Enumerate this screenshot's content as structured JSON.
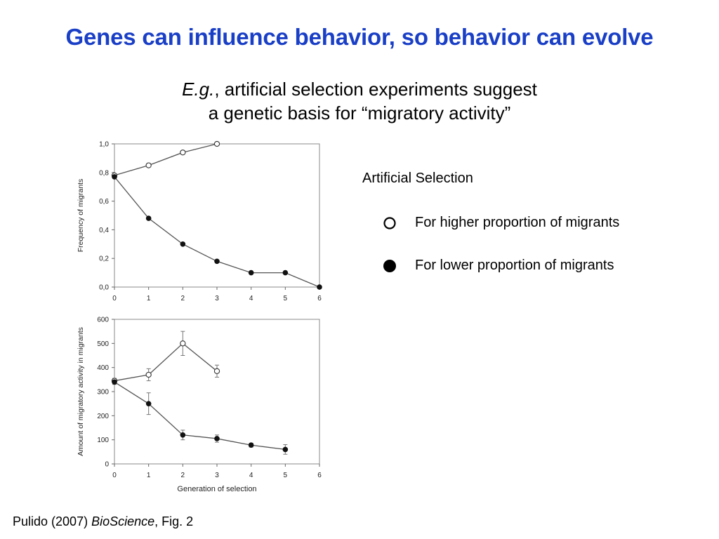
{
  "slide": {
    "title": "Genes can influence behavior, so behavior can evolve",
    "subtitle_italic": "E.g.",
    "subtitle_line1_rest": ", artificial selection experiments suggest",
    "subtitle_line2": "a genetic basis for “migratory activity”",
    "legend_title": "Artificial Selection",
    "legend_high": "For higher proportion of migrants",
    "legend_low": "For lower proportion of migrants",
    "citation_prefix": "Pulido (2007) ",
    "citation_journal": "BioScience",
    "citation_suffix": ", Fig. 2"
  },
  "chart_data": [
    {
      "type": "line",
      "title": "",
      "xlabel": "",
      "ylabel": "Frequency of migrants",
      "xlim": [
        0,
        6
      ],
      "ylim": [
        0,
        1.0
      ],
      "xticks": [
        "0",
        "1",
        "2",
        "3",
        "4",
        "5",
        "6"
      ],
      "yticks": [
        "0,0",
        "0,2",
        "0,4",
        "0,6",
        "0,8",
        "1,0"
      ],
      "yticks_values": [
        0,
        0.2,
        0.4,
        0.6,
        0.8,
        1.0
      ],
      "series": [
        {
          "name": "For higher proportion of migrants",
          "marker": "open",
          "x": [
            0,
            1,
            2,
            3
          ],
          "y": [
            0.78,
            0.85,
            0.94,
            1.0
          ]
        },
        {
          "name": "For lower proportion of migrants",
          "marker": "filled",
          "x": [
            0,
            1,
            2,
            3,
            4,
            5,
            6
          ],
          "y": [
            0.77,
            0.48,
            0.3,
            0.18,
            0.1,
            0.1,
            0.0
          ]
        }
      ]
    },
    {
      "type": "line",
      "title": "",
      "xlabel": "Generation of selection",
      "ylabel": "Amount of migratory activity in migrants",
      "xlim": [
        0,
        6
      ],
      "ylim": [
        0,
        600
      ],
      "xticks": [
        "0",
        "1",
        "2",
        "3",
        "4",
        "5",
        "6"
      ],
      "yticks": [
        "0",
        "100",
        "200",
        "300",
        "400",
        "500",
        "600"
      ],
      "yticks_values": [
        0,
        100,
        200,
        300,
        400,
        500,
        600
      ],
      "series": [
        {
          "name": "For higher proportion of migrants",
          "marker": "open",
          "x": [
            0,
            1,
            2,
            3
          ],
          "y": [
            345,
            370,
            500,
            385
          ],
          "error": [
            10,
            25,
            50,
            25
          ]
        },
        {
          "name": "For lower proportion of migrants",
          "marker": "filled",
          "x": [
            0,
            1,
            2,
            3,
            4,
            5
          ],
          "y": [
            340,
            250,
            120,
            105,
            78,
            60
          ],
          "error": [
            10,
            45,
            20,
            15,
            8,
            20
          ]
        }
      ]
    }
  ]
}
